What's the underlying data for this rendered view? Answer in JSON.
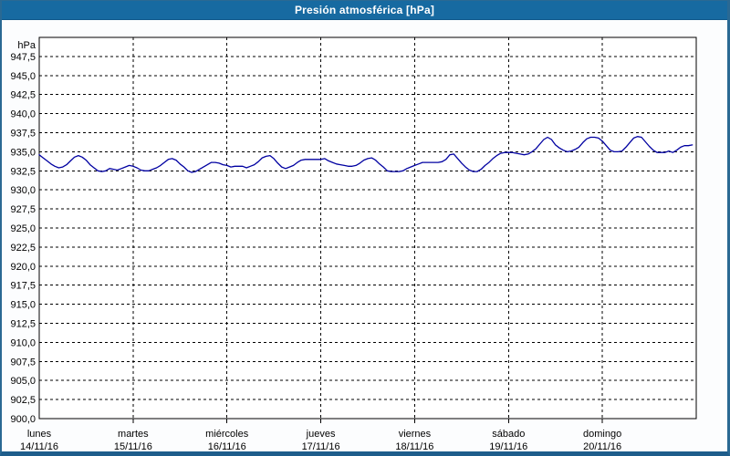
{
  "window": {
    "title": "Presión atmosférica [hPa]"
  },
  "colors": {
    "titlebar_bg": "#176aa1",
    "window_border": "#2a6993",
    "plot_bg": "#ffffff",
    "page_bg": "#fcfdfe",
    "grid": "#000000",
    "axis": "#000000",
    "text": "#000000",
    "series_line": "#0000a1"
  },
  "chart_data": {
    "type": "line",
    "title": "Presión atmosférica [hPa]",
    "unit_label": "hPa",
    "grid": "dashed",
    "legend": "none",
    "y_axis": {
      "min": 900.0,
      "max": 950.0,
      "tick_step": 2.5,
      "top_tick_labeled": false,
      "tick_labels_top_to_bottom": [
        "947,5",
        "945,0",
        "942,5",
        "940,0",
        "937,5",
        "935,0",
        "932,5",
        "930,0",
        "927,5",
        "925,0",
        "922,5",
        "920,0",
        "917,5",
        "915,0",
        "912,5",
        "910,0",
        "907,5",
        "905,0",
        "902,5",
        "900,0"
      ]
    },
    "x_axis": {
      "days": [
        {
          "name": "lunes",
          "date": "14/11/16"
        },
        {
          "name": "martes",
          "date": "15/11/16"
        },
        {
          "name": "miércoles",
          "date": "16/11/16"
        },
        {
          "name": "jueves",
          "date": "17/11/16"
        },
        {
          "name": "viernes",
          "date": "18/11/16"
        },
        {
          "name": "sábado",
          "date": "19/11/16"
        },
        {
          "name": "domingo",
          "date": "20/11/16"
        }
      ],
      "hours_per_day": 24,
      "domain_hours": [
        0,
        168
      ]
    },
    "series": [
      {
        "name": "Presión atmosférica",
        "color": "#0000a1",
        "start_hour": 0,
        "sample_interval_hours": 1,
        "values": [
          934.6,
          934.2,
          933.8,
          933.4,
          933.1,
          932.9,
          933.0,
          933.3,
          933.8,
          934.3,
          934.5,
          934.3,
          933.9,
          933.3,
          932.9,
          932.5,
          932.4,
          932.5,
          932.8,
          932.7,
          932.6,
          932.8,
          933.0,
          933.2,
          933.1,
          932.9,
          932.6,
          932.5,
          932.5,
          932.7,
          932.9,
          933.2,
          933.6,
          934.0,
          934.1,
          933.9,
          933.4,
          933.0,
          932.5,
          932.3,
          932.4,
          932.7,
          933.0,
          933.3,
          933.6,
          933.6,
          933.5,
          933.3,
          933.2,
          933.0,
          933.1,
          933.1,
          933.1,
          932.9,
          933.1,
          933.3,
          933.7,
          934.2,
          934.4,
          934.5,
          934.1,
          933.5,
          933.0,
          932.8,
          933.0,
          933.2,
          933.6,
          933.9,
          934.0,
          934.0,
          934.0,
          934.0,
          934.0,
          934.1,
          933.8,
          933.6,
          933.4,
          933.3,
          933.2,
          933.1,
          933.1,
          933.2,
          933.5,
          933.9,
          934.1,
          934.2,
          933.9,
          933.4,
          933.0,
          932.5,
          932.4,
          932.4,
          932.4,
          932.5,
          932.8,
          933.0,
          933.2,
          933.4,
          933.6,
          933.6,
          933.6,
          933.6,
          933.6,
          933.7,
          934.0,
          934.6,
          934.7,
          934.1,
          933.5,
          933.0,
          932.6,
          932.4,
          932.4,
          932.7,
          933.2,
          933.6,
          934.1,
          934.5,
          934.8,
          934.9,
          934.9,
          934.9,
          934.8,
          934.7,
          934.6,
          934.7,
          935.0,
          935.4,
          936.0,
          936.6,
          936.9,
          936.6,
          935.9,
          935.5,
          935.2,
          935.0,
          935.1,
          935.3,
          935.6,
          936.2,
          936.7,
          936.9,
          936.9,
          936.8,
          936.4,
          935.8,
          935.2,
          935.0,
          935.0,
          935.1,
          935.6,
          936.2,
          936.8,
          937.0,
          936.9,
          936.3,
          935.7,
          935.2,
          934.9,
          934.9,
          934.9,
          935.1,
          934.9,
          935.2,
          935.6,
          935.8,
          935.8,
          935.9
        ]
      }
    ]
  }
}
